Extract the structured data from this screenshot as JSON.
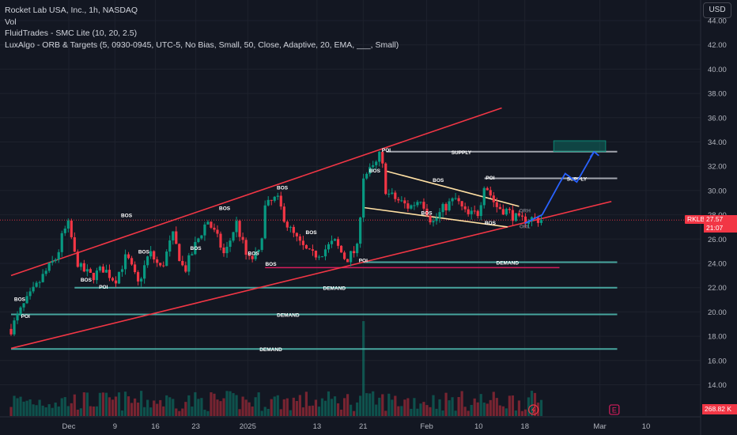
{
  "legend": {
    "symbol": "Rocket Lab USA, Inc., 1h, NASDAQ",
    "vol": "Vol",
    "indicator1": "FluidTrades - SMC Lite (10, 20, 2.5)",
    "indicator2": "LuxAlgo - ORB & Targets (5, 0930-0945, UTC-5, No Bias, Small, 50, Close, Adaptive, 20, EMA, ___, Small)"
  },
  "currency_button": "USD",
  "price_tag": {
    "symbol": "RKLB",
    "price": "27.57",
    "countdown": "21:07"
  },
  "volume_tag": "268.82 K",
  "event_icons": {
    "earnings": "E",
    "flash": "flash-icon"
  },
  "colors": {
    "background": "#131722",
    "up_candle": "#089981",
    "down_candle": "#f23645",
    "channel": "#f23645",
    "demand_line": "#4db6ac",
    "supply_line": "#b2b5be",
    "wedge": "#ffe0a3",
    "projection": "#2962ff"
  },
  "chart_data": {
    "type": "candlestick",
    "y_axis": {
      "ticks": [
        "44.00",
        "42.00",
        "40.00",
        "38.00",
        "36.00",
        "34.00",
        "32.00",
        "30.00",
        "28.00",
        "26.00",
        "24.00",
        "22.00",
        "20.00",
        "18.00",
        "16.00",
        "14.00"
      ],
      "range": [
        12.8,
        44.8
      ],
      "current_price": 27.57
    },
    "x_axis": {
      "ticks": [
        "Dec",
        "9",
        "16",
        "23",
        "2025",
        "13",
        "21",
        "Feb",
        "10",
        "18",
        "Mar",
        "10"
      ],
      "tick_positions_days": [
        0,
        8,
        15,
        22,
        31,
        43,
        51,
        62,
        71,
        79,
        92,
        100
      ]
    },
    "first_day": -10,
    "data_end_day": 82,
    "price_path": [
      [
        -10,
        18.6
      ],
      [
        -8,
        20.4
      ],
      [
        -6,
        21.8
      ],
      [
        -4,
        23.3
      ],
      [
        -2,
        24.6
      ],
      [
        -1,
        26.5
      ],
      [
        0,
        27.2
      ],
      [
        1,
        24.7
      ],
      [
        2,
        23.6
      ],
      [
        4,
        22.9
      ],
      [
        6,
        23.6
      ],
      [
        8,
        22.6
      ],
      [
        10,
        24.6
      ],
      [
        12,
        22.3
      ],
      [
        14,
        24.9
      ],
      [
        16,
        23.5
      ],
      [
        18,
        26.3
      ],
      [
        20,
        23.3
      ],
      [
        22,
        25.6
      ],
      [
        24,
        27.6
      ],
      [
        26,
        25.8
      ],
      [
        27,
        24.6
      ],
      [
        29,
        27.4
      ],
      [
        31,
        24.2
      ],
      [
        33,
        24.8
      ],
      [
        34,
        28.6
      ],
      [
        36,
        29.4
      ],
      [
        38,
        27.0
      ],
      [
        40,
        25.6
      ],
      [
        42,
        24.6
      ],
      [
        44,
        25.0
      ],
      [
        46,
        25.8
      ],
      [
        48,
        24.3
      ],
      [
        50,
        25.2
      ],
      [
        51,
        31.2
      ],
      [
        53,
        31.9
      ],
      [
        54,
        33.1
      ],
      [
        55,
        29.8
      ],
      [
        57,
        29.2
      ],
      [
        59,
        28.6
      ],
      [
        61,
        29.4
      ],
      [
        63,
        27.3
      ],
      [
        65,
        28.6
      ],
      [
        67,
        29.3
      ],
      [
        69,
        27.9
      ],
      [
        71,
        28.2
      ],
      [
        72,
        30.7
      ],
      [
        74,
        28.7
      ],
      [
        76,
        28.3
      ],
      [
        78,
        27.5
      ],
      [
        80,
        27.7
      ],
      [
        82,
        27.6
      ]
    ],
    "levels": [
      {
        "label": "SUPPLY",
        "price": 33.2,
        "from_day": 55,
        "to_day": 95,
        "kind": "supply"
      },
      {
        "label": "SUPPLY",
        "price": 31.0,
        "from_day": 72,
        "to_day": 95,
        "kind": "supply"
      },
      {
        "label": "DEMAND",
        "price": 24.1,
        "from_day": 51,
        "to_day": 95,
        "kind": "demand"
      },
      {
        "label": "DEMAND",
        "price": 23.65,
        "from_day": 34,
        "to_day": 85,
        "kind": "demand_pink"
      },
      {
        "label": "DEMAND",
        "price": 22.0,
        "from_day": 1,
        "to_day": 95,
        "kind": "demand"
      },
      {
        "label": "DEMAND",
        "price": 19.8,
        "from_day": -10,
        "to_day": 95,
        "kind": "demand"
      },
      {
        "label": "DEMAND",
        "price": 16.95,
        "from_day": -10,
        "to_day": 95,
        "kind": "demand"
      }
    ],
    "structure_labels": [
      {
        "text": "BOS",
        "day": -8.5,
        "price": 20.9
      },
      {
        "text": "POI",
        "day": -7.5,
        "price": 19.5
      },
      {
        "text": "BOS",
        "day": 10,
        "price": 27.8
      },
      {
        "text": "BOS",
        "day": 3,
        "price": 22.5
      },
      {
        "text": "BOS",
        "day": 13,
        "price": 24.8
      },
      {
        "text": "POI",
        "day": 6,
        "price": 21.9
      },
      {
        "text": "BOS",
        "day": 22,
        "price": 25.1
      },
      {
        "text": "BOS",
        "day": 27,
        "price": 28.4
      },
      {
        "text": "BOS",
        "day": 32,
        "price": 24.7
      },
      {
        "text": "BOS",
        "day": 37,
        "price": 30.1
      },
      {
        "text": "BOS",
        "day": 35,
        "price": 23.8
      },
      {
        "text": "BOS",
        "day": 42,
        "price": 26.4
      },
      {
        "text": "POI",
        "day": 51,
        "price": 24.1
      },
      {
        "text": "BOS",
        "day": 53,
        "price": 31.5
      },
      {
        "text": "POI",
        "day": 55,
        "price": 33.2
      },
      {
        "text": "BOS",
        "day": 64,
        "price": 30.7
      },
      {
        "text": "BOS",
        "day": 62,
        "price": 28.0
      },
      {
        "text": "POI",
        "day": 73,
        "price": 30.9
      },
      {
        "text": "BOS",
        "day": 73,
        "price": 27.2
      },
      {
        "text": "ORH",
        "day": 79,
        "price": 28.2
      },
      {
        "text": "ORL",
        "day": 79,
        "price": 26.9
      }
    ],
    "channel": {
      "upper": [
        [
          -10,
          23.0
        ],
        [
          75,
          36.8
        ]
      ],
      "lower": [
        [
          -10,
          17.0
        ],
        [
          94,
          29.1
        ]
      ]
    },
    "wedge": {
      "upper": [
        [
          55,
          31.6
        ],
        [
          78,
          28.7
        ]
      ],
      "lower": [
        [
          51,
          28.6
        ],
        [
          76,
          27.0
        ]
      ]
    },
    "projection": [
      [
        79,
        27.3
      ],
      [
        82,
        28.0
      ],
      [
        85,
        30.6
      ],
      [
        86,
        31.4
      ],
      [
        88,
        30.7
      ],
      [
        91,
        33.2
      ]
    ],
    "target_zone": {
      "from_day": 84,
      "to_day": 93,
      "low": 33.2,
      "high": 34.1
    },
    "volume_spike_day": 51
  }
}
